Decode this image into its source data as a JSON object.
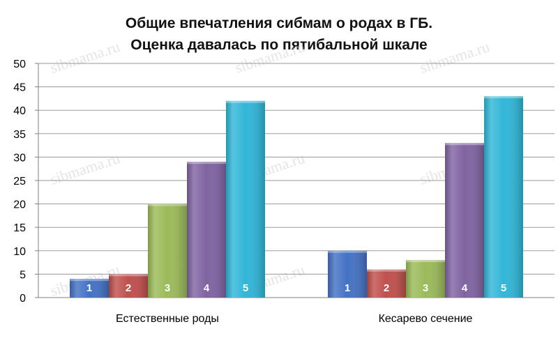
{
  "chart_data": {
    "type": "bar",
    "title": "Общие впечатления сибмам о родах в ГБ.",
    "subtitle": "Оценка давалась по пятибальной шкале",
    "categories": [
      "Естественные роды",
      "Кесарево сечение"
    ],
    "series": [
      {
        "name": "1",
        "color": "#4472C4",
        "values": [
          4,
          10
        ]
      },
      {
        "name": "2",
        "color": "#C0504D",
        "values": [
          5,
          6
        ]
      },
      {
        "name": "3",
        "color": "#9BBB59",
        "values": [
          20,
          8
        ]
      },
      {
        "name": "4",
        "color": "#8064A2",
        "values": [
          29,
          33
        ]
      },
      {
        "name": "5",
        "color": "#31B6D8",
        "values": [
          42,
          43
        ]
      }
    ],
    "ylim": [
      0,
      50
    ],
    "yticks": [
      "0",
      "5",
      "10",
      "15",
      "20",
      "25",
      "30",
      "35",
      "40",
      "45",
      "50"
    ],
    "grid": true,
    "legend": "none",
    "bar_labels": "series-name-inside-bottom"
  },
  "watermark": "sibmama.ru"
}
